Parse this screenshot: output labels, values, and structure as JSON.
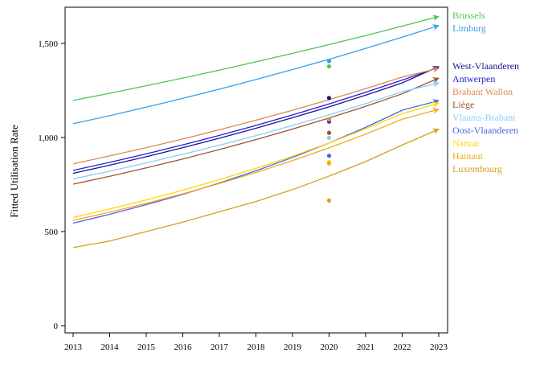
{
  "chart_data": {
    "type": "line",
    "title": "",
    "xlabel": "",
    "ylabel": "Fitted Utilisation Rate",
    "xlim": [
      2013,
      2023
    ],
    "ylim": [
      0,
      1700
    ],
    "x_ticks": [
      2013,
      2014,
      2015,
      2016,
      2017,
      2018,
      2019,
      2020,
      2021,
      2022,
      2023
    ],
    "x_tick_labels": [
      "2013",
      "2014",
      "2015",
      "2016",
      "2017",
      "2018",
      "2019",
      "2020",
      "2021",
      "2022",
      "2023"
    ],
    "y_ticks": [
      0,
      500,
      1000,
      1500
    ],
    "y_tick_labels": [
      "0",
      "500",
      "1,000",
      "1,500"
    ],
    "grid": false,
    "legend_position": "right",
    "x": [
      2013,
      2014,
      2015,
      2016,
      2017,
      2018,
      2019,
      2020,
      2021,
      2022,
      2023
    ],
    "observed_x": 2020,
    "series": [
      {
        "name": "Brussels",
        "color": "#4cc84c",
        "values": [
          1197,
          1235,
          1275,
          1316,
          1358,
          1402,
          1447,
          1494,
          1542,
          1592,
          1643
        ],
        "observed": 1378
      },
      {
        "name": "Limburg",
        "color": "#3a9ee8",
        "values": [
          1073,
          1116,
          1161,
          1208,
          1257,
          1308,
          1361,
          1416,
          1473,
          1533,
          1595
        ],
        "observed": 1406
      },
      {
        "name": "West-Vlaanderen",
        "color": "#16168c",
        "values": [
          810,
          853,
          898,
          946,
          996,
          1049,
          1105,
          1163,
          1225,
          1290,
          1377
        ],
        "observed": 1210
      },
      {
        "name": "Antwerpen",
        "color": "#1e1edc",
        "values": [
          825,
          868,
          913,
          961,
          1011,
          1064,
          1120,
          1178,
          1240,
          1305,
          1373
        ],
        "observed": 1085
      },
      {
        "name": "Brabant Wallon",
        "color": "#dc8a50",
        "values": [
          860,
          902,
          946,
          992,
          1041,
          1092,
          1145,
          1201,
          1260,
          1321,
          1368
        ],
        "observed": 1095
      },
      {
        "name": "Liège",
        "color": "#a0522d",
        "values": [
          752,
          794,
          839,
          886,
          936,
          989,
          1045,
          1104,
          1166,
          1232,
          1316
        ],
        "observed": 1025
      },
      {
        "name": "Vlaams-Brabant",
        "color": "#87cefa",
        "values": [
          780,
          821,
          865,
          911,
          959,
          1010,
          1064,
          1120,
          1180,
          1243,
          1290
        ],
        "observed": 998
      },
      {
        "name": "Oost-Vlaanderen",
        "color": "#4169e1",
        "values": [
          545,
          592,
          643,
          698,
          758,
          823,
          894,
          971,
          1054,
          1145,
          1196
        ],
        "observed": 903
      },
      {
        "name": "Namur",
        "color": "#ffd700",
        "values": [
          575,
          620,
          668,
          720,
          776,
          836,
          901,
          971,
          1046,
          1127,
          1183
        ],
        "observed": 870
      },
      {
        "name": "Hainaut",
        "color": "#f5a623",
        "values": [
          560,
          603,
          650,
          701,
          755,
          814,
          877,
          945,
          1018,
          1097,
          1150
        ],
        "observed": 862
      },
      {
        "name": "Luxembourg",
        "color": "#d4a017",
        "values": [
          415,
          450,
          500,
          550,
          605,
          660,
          723,
          795,
          872,
          960,
          1045
        ],
        "observed": 665
      }
    ]
  }
}
